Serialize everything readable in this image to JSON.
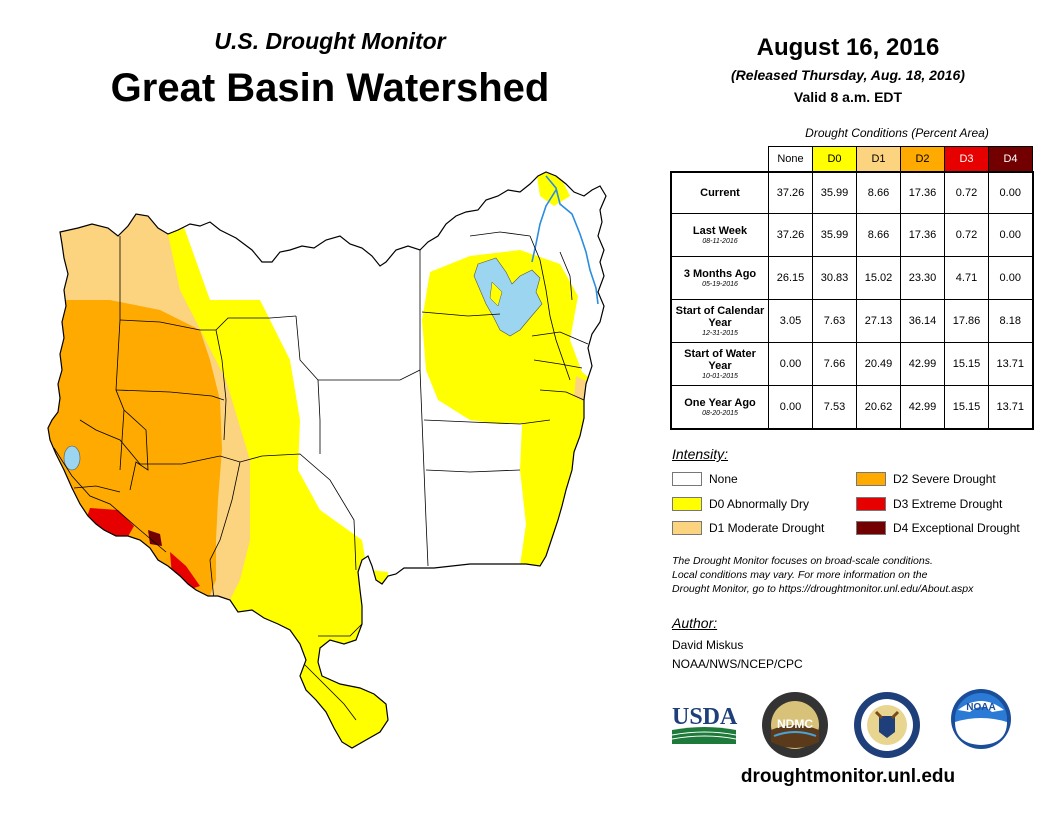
{
  "header": {
    "subtitle": "U.S. Drought Monitor",
    "title": "Great Basin Watershed",
    "date": "August 16, 2016",
    "released": "(Released Thursday, Aug. 18, 2016)",
    "valid": "Valid 8 a.m. EDT"
  },
  "table": {
    "caption": "Drought Conditions (Percent Area)",
    "columns": [
      "None",
      "D0",
      "D1",
      "D2",
      "D3",
      "D4"
    ],
    "column_colors": [
      "#ffffff",
      "#ffff00",
      "#fcd37f",
      "#ffaa00",
      "#e60000",
      "#730000"
    ],
    "rows": [
      {
        "label": "Current",
        "date": "",
        "values": [
          "37.26",
          "35.99",
          "8.66",
          "17.36",
          "0.72",
          "0.00"
        ]
      },
      {
        "label": "Last Week",
        "date": "08-11-2016",
        "values": [
          "37.26",
          "35.99",
          "8.66",
          "17.36",
          "0.72",
          "0.00"
        ]
      },
      {
        "label": "3 Months Ago",
        "date": "05-19-2016",
        "values": [
          "26.15",
          "30.83",
          "15.02",
          "23.30",
          "4.71",
          "0.00"
        ]
      },
      {
        "label": "Start of Calendar Year",
        "date": "12-31-2015",
        "values": [
          "3.05",
          "7.63",
          "27.13",
          "36.14",
          "17.86",
          "8.18"
        ]
      },
      {
        "label": "Start of Water Year",
        "date": "10-01-2015",
        "values": [
          "0.00",
          "7.66",
          "20.49",
          "42.99",
          "15.15",
          "13.71"
        ]
      },
      {
        "label": "One Year Ago",
        "date": "08-20-2015",
        "values": [
          "0.00",
          "7.53",
          "20.62",
          "42.99",
          "15.15",
          "13.71"
        ]
      }
    ]
  },
  "legend": {
    "title": "Intensity:",
    "items": [
      {
        "label": "None",
        "color": "#ffffff"
      },
      {
        "label": "D0 Abnormally Dry",
        "color": "#ffff00"
      },
      {
        "label": "D1 Moderate Drought",
        "color": "#fcd37f"
      },
      {
        "label": "D2 Severe Drought",
        "color": "#ffaa00"
      },
      {
        "label": "D3 Extreme Drought",
        "color": "#e60000"
      },
      {
        "label": "D4 Exceptional Drought",
        "color": "#730000"
      }
    ]
  },
  "note": {
    "line1": "The Drought Monitor focuses on broad-scale conditions.",
    "line2": "Local conditions may vary. For more information on the",
    "line3": "Drought Monitor, go to https://droughtmonitor.unl.edu/About.aspx"
  },
  "author": {
    "title": "Author:",
    "name": "David Miskus",
    "org": "NOAA/NWS/NCEP/CPC"
  },
  "logos": {
    "usda": "USDA",
    "ndmc": "NDMC",
    "noaa": "NOAA"
  },
  "footer": {
    "website": "droughtmonitor.unl.edu"
  },
  "map_colors": {
    "water": "#9cd5f0",
    "river": "#2a8de0"
  }
}
